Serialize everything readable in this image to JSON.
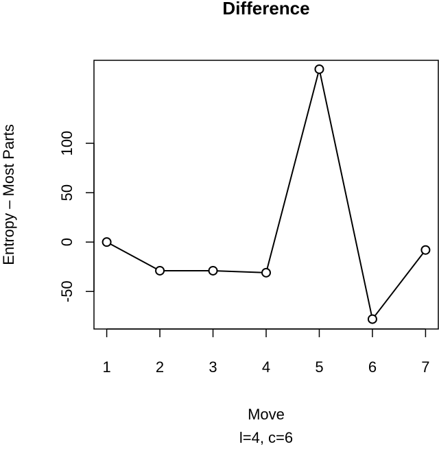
{
  "chart_data": {
    "type": "line",
    "title": "Difference",
    "x_label": "Move",
    "subtitle": "l=4, c=6",
    "y_label": "Entropy – Most Parts",
    "x": [
      1,
      2,
      3,
      4,
      5,
      6,
      7
    ],
    "values": [
      0,
      -29,
      -29,
      -31,
      175,
      -78,
      -8
    ],
    "color": "#000000",
    "xlim": [
      0.76,
      7.24
    ],
    "xticks": [
      1,
      2,
      3,
      4,
      5,
      6,
      7
    ],
    "ylim": [
      -88,
      184
    ],
    "yticks": [
      -50,
      0,
      50,
      100
    ]
  }
}
